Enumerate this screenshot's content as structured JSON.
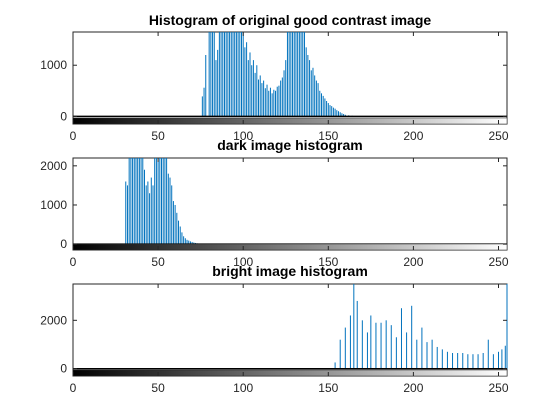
{
  "chart_data": [
    {
      "type": "bar",
      "title": "Histogram of original good contrast image",
      "xlabel": "",
      "ylabel": "",
      "xlim": [
        0,
        255
      ],
      "ylim": [
        -150,
        1650
      ],
      "xticks": [
        0,
        50,
        100,
        150,
        200,
        250
      ],
      "yticks": [
        0,
        1000
      ],
      "grid": false,
      "colorbar": "grayscale",
      "x": [
        76,
        77,
        78,
        80,
        81,
        82,
        83,
        84,
        85,
        86,
        87,
        88,
        89,
        90,
        91,
        92,
        93,
        94,
        95,
        96,
        97,
        98,
        99,
        100,
        101,
        102,
        103,
        104,
        105,
        106,
        107,
        108,
        109,
        110,
        111,
        112,
        113,
        114,
        115,
        116,
        117,
        118,
        119,
        120,
        121,
        122,
        123,
        124,
        125,
        126,
        127,
        128,
        129,
        130,
        131,
        132,
        133,
        134,
        135,
        136,
        137,
        138,
        139,
        140,
        141,
        142,
        143,
        144,
        145,
        146,
        147,
        148,
        149,
        150,
        151,
        152,
        153,
        154,
        155,
        156,
        157,
        158,
        159,
        160,
        162,
        164,
        166,
        168
      ],
      "values": [
        390,
        560,
        1200,
        1650,
        1650,
        1650,
        1650,
        1100,
        1300,
        1650,
        1650,
        1650,
        1650,
        1650,
        1650,
        1650,
        1650,
        1650,
        1650,
        1650,
        1650,
        1650,
        1650,
        1650,
        1350,
        1450,
        1100,
        1250,
        1000,
        1100,
        850,
        1000,
        720,
        800,
        650,
        700,
        550,
        620,
        500,
        560,
        450,
        520,
        500,
        580,
        600,
        700,
        760,
        900,
        1100,
        1650,
        1650,
        1650,
        1650,
        1650,
        1650,
        1650,
        1650,
        1650,
        1650,
        1650,
        1350,
        1200,
        1100,
        900,
        950,
        800,
        700,
        650,
        500,
        450,
        400,
        350,
        300,
        260,
        220,
        200,
        170,
        150,
        120,
        100,
        80,
        60,
        45,
        30,
        20,
        12,
        6,
        3
      ]
    },
    {
      "type": "bar",
      "title": "dark image histogram",
      "xlabel": "",
      "ylabel": "",
      "xlim": [
        0,
        255
      ],
      "ylim": [
        -150,
        2200
      ],
      "xticks": [
        0,
        50,
        100,
        150,
        200,
        250
      ],
      "yticks": [
        0,
        1000,
        2000
      ],
      "grid": false,
      "colorbar": "grayscale",
      "x": [
        31,
        32,
        33,
        34,
        35,
        36,
        37,
        38,
        39,
        40,
        41,
        42,
        43,
        44,
        45,
        46,
        47,
        48,
        49,
        50,
        51,
        52,
        53,
        54,
        55,
        56,
        57,
        58,
        59,
        60,
        61,
        62,
        63,
        64,
        65,
        66,
        67,
        68,
        69,
        70,
        71,
        72,
        73,
        74,
        75
      ],
      "values": [
        1600,
        1500,
        2200,
        2200,
        2200,
        2200,
        2200,
        2200,
        2200,
        2200,
        2200,
        1900,
        1500,
        1600,
        1300,
        1700,
        1500,
        2200,
        2200,
        2200,
        2200,
        2200,
        2200,
        2200,
        2200,
        1800,
        1700,
        1500,
        1100,
        1000,
        800,
        600,
        450,
        300,
        200,
        150,
        110,
        90,
        70,
        55,
        40,
        30,
        20,
        12,
        6
      ]
    },
    {
      "type": "bar",
      "title": "bright image histogram",
      "xlabel": "",
      "ylabel": "",
      "xlim": [
        0,
        255
      ],
      "ylim": [
        -300,
        3500
      ],
      "xticks": [
        0,
        50,
        100,
        150,
        200,
        250
      ],
      "yticks": [
        0,
        2000
      ],
      "grid": false,
      "colorbar": "grayscale",
      "x": [
        154,
        157,
        160,
        163,
        165,
        167,
        170,
        173,
        175,
        178,
        181,
        184,
        187,
        190,
        193,
        196,
        199,
        202,
        205,
        208,
        211,
        214,
        217,
        220,
        223,
        226,
        229,
        232,
        235,
        238,
        241,
        244,
        247,
        250,
        252,
        254,
        255
      ],
      "values": [
        260,
        1200,
        1700,
        2200,
        3500,
        2800,
        2000,
        1500,
        2200,
        1900,
        1900,
        2000,
        1800,
        1300,
        2500,
        1500,
        2600,
        1200,
        1700,
        1100,
        1200,
        900,
        800,
        700,
        650,
        650,
        650,
        600,
        600,
        600,
        650,
        1200,
        600,
        700,
        800,
        950,
        3500
      ]
    }
  ]
}
